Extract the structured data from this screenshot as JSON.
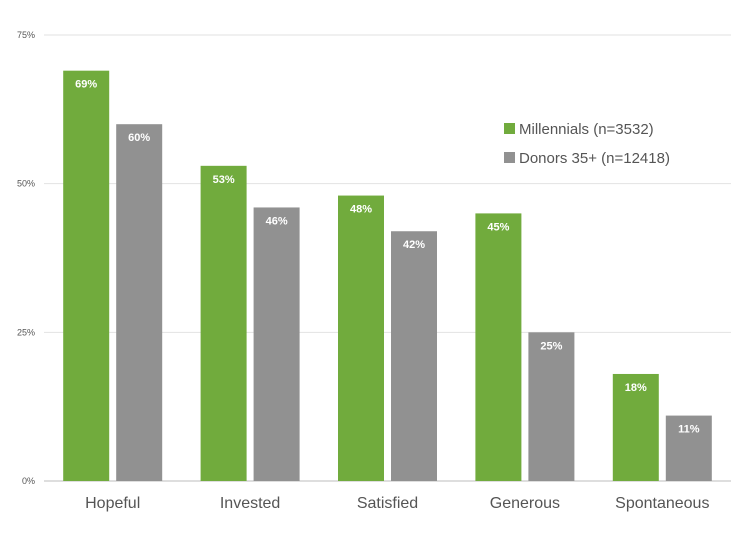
{
  "chart_data": {
    "type": "bar",
    "categories": [
      "Hopeful",
      "Invested",
      "Satisfied",
      "Generous",
      "Spontaneous"
    ],
    "series": [
      {
        "name": "Millennials (n=3532)",
        "values": [
          69,
          53,
          48,
          45,
          18
        ],
        "labels": [
          "69%",
          "53%",
          "48%",
          "45%",
          "18%"
        ],
        "color": "#71ab3d"
      },
      {
        "name": "Donors 35+ (n=12418)",
        "values": [
          60,
          46,
          42,
          25,
          11
        ],
        "labels": [
          "60%",
          "46%",
          "42%",
          "25%",
          "11%"
        ],
        "color": "#919191"
      }
    ],
    "yticks": [
      "0%",
      "25%",
      "50%",
      "75%"
    ],
    "ylim": [
      0,
      75
    ],
    "grid": true,
    "legend": "right"
  }
}
